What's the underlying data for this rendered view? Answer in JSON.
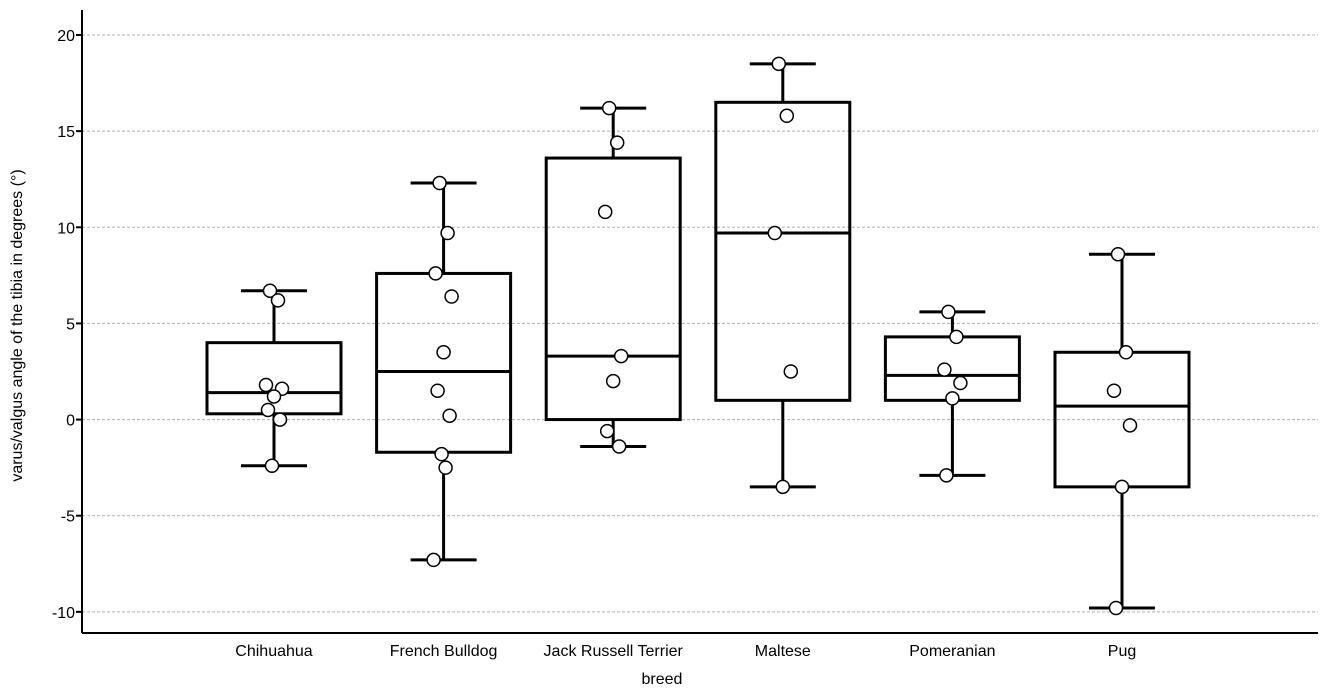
{
  "chart_data": {
    "type": "box",
    "xlabel": "breed",
    "ylabel": "varus/valgus angle of the tibia in degrees (°)",
    "ylim": [
      -11.1,
      21.3
    ],
    "yticks": [
      20,
      15,
      10,
      5,
      0,
      -5,
      -10
    ],
    "grid": true,
    "categories": [
      "Chihuahua",
      "French Bulldog",
      "Jack Russell Terrier",
      "Maltese",
      "Pomeranian",
      "Pug"
    ],
    "boxes": [
      {
        "category": "Chihuahua",
        "whisker_low": -2.4,
        "q1": 0.3,
        "median": 1.4,
        "q3": 4.0,
        "whisker_high": 6.7,
        "points": [
          6.7,
          6.2,
          1.8,
          1.6,
          1.2,
          0.5,
          0.0,
          -2.4
        ]
      },
      {
        "category": "French Bulldog",
        "whisker_low": -7.3,
        "q1": -1.7,
        "median": 2.5,
        "q3": 7.6,
        "whisker_high": 12.3,
        "points": [
          12.3,
          9.7,
          7.6,
          6.4,
          3.5,
          1.5,
          0.2,
          -1.8,
          -2.5,
          -7.3
        ]
      },
      {
        "category": "Jack Russell Terrier",
        "whisker_low": -1.4,
        "q1": 0.0,
        "median": 3.3,
        "q3": 13.6,
        "whisker_high": 16.2,
        "points": [
          16.2,
          14.4,
          10.8,
          3.3,
          2.0,
          -0.6,
          -1.4
        ]
      },
      {
        "category": "Maltese",
        "whisker_low": -3.5,
        "q1": 1.0,
        "median": 9.7,
        "q3": 16.5,
        "whisker_high": 18.5,
        "points": [
          18.5,
          15.8,
          9.7,
          2.5,
          -3.5
        ]
      },
      {
        "category": "Pomeranian",
        "whisker_low": -2.9,
        "q1": 1.0,
        "median": 2.3,
        "q3": 4.3,
        "whisker_high": 5.6,
        "points": [
          5.6,
          4.3,
          2.6,
          1.9,
          1.1,
          -2.9
        ]
      },
      {
        "category": "Pug",
        "whisker_low": -9.8,
        "q1": -3.5,
        "median": 0.7,
        "q3": 3.5,
        "whisker_high": 8.6,
        "points": [
          8.6,
          3.5,
          1.5,
          -0.3,
          -3.5,
          -9.8
        ]
      }
    ]
  }
}
